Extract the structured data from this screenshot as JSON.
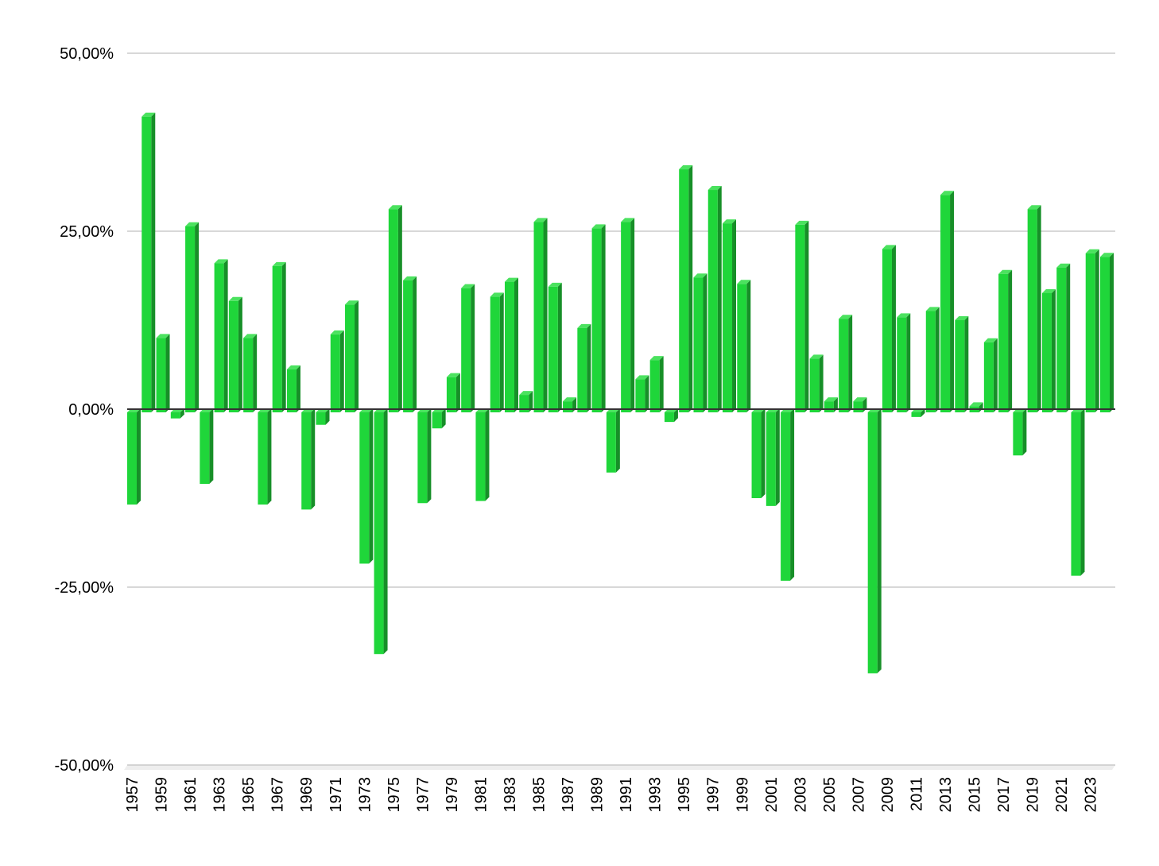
{
  "chart_data": {
    "type": "bar",
    "title": "",
    "xlabel": "",
    "ylabel": "",
    "ylim": [
      -50,
      50
    ],
    "grid": true,
    "legend": null,
    "style": "3d-column",
    "bar_color": "#1fd63a",
    "bar_side_color": "#178f28",
    "bar_top_color": "#4be25f",
    "y_ticks": [
      50,
      25,
      0,
      -25,
      -50
    ],
    "y_tick_labels": [
      "50,00%",
      "25,00%",
      "0,00%",
      "-25,00%",
      "-50,00%"
    ],
    "x_tick_labels": [
      "1957",
      "1959",
      "1961",
      "1963",
      "1965",
      "1967",
      "1969",
      "1971",
      "1973",
      "1975",
      "1977",
      "1979",
      "1981",
      "1983",
      "1985",
      "1987",
      "1989",
      "1991",
      "1993",
      "1995",
      "1997",
      "1999",
      "2001",
      "2003",
      "2005",
      "2007",
      "2009",
      "2011",
      "2013",
      "2015",
      "2017",
      "2019",
      "2021",
      "2023"
    ],
    "categories": [
      "1957",
      "1958",
      "1959",
      "1960",
      "1961",
      "1962",
      "1963",
      "1964",
      "1965",
      "1966",
      "1967",
      "1968",
      "1969",
      "1970",
      "1971",
      "1972",
      "1973",
      "1974",
      "1975",
      "1976",
      "1977",
      "1978",
      "1979",
      "1980",
      "1981",
      "1982",
      "1983",
      "1984",
      "1985",
      "1986",
      "1987",
      "1988",
      "1989",
      "1990",
      "1991",
      "1992",
      "1993",
      "1994",
      "1995",
      "1996",
      "1997",
      "1998",
      "1999",
      "2000",
      "2001",
      "2002",
      "2003",
      "2004",
      "2005",
      "2006",
      "2007",
      "2008",
      "2009",
      "2010",
      "2011",
      "2012",
      "2013",
      "2014",
      "2015",
      "2016",
      "2017",
      "2018",
      "2019",
      "2020",
      "2021",
      "2022",
      "2023",
      "2024"
    ],
    "values": [
      -13.4,
      41.1,
      10.0,
      -1.3,
      25.7,
      -10.5,
      20.5,
      15.2,
      10.0,
      -13.4,
      20.1,
      5.6,
      -14.1,
      -2.2,
      10.5,
      14.7,
      -21.7,
      -34.4,
      28.1,
      18.1,
      -13.2,
      -2.7,
      4.5,
      17.0,
      -12.9,
      15.8,
      17.9,
      2.0,
      26.3,
      17.2,
      1.1,
      11.4,
      25.4,
      -8.9,
      26.3,
      4.2,
      6.9,
      -1.8,
      33.7,
      18.5,
      30.8,
      26.1,
      17.6,
      -12.5,
      -13.6,
      -24.1,
      25.9,
      7.1,
      1.1,
      12.7,
      1.1,
      -37.1,
      22.5,
      12.9,
      -1.1,
      13.8,
      30.1,
      12.5,
      0.4,
      9.4,
      19.0,
      -6.5,
      28.1,
      16.3,
      19.9,
      -23.4,
      21.9,
      21.4
    ]
  }
}
